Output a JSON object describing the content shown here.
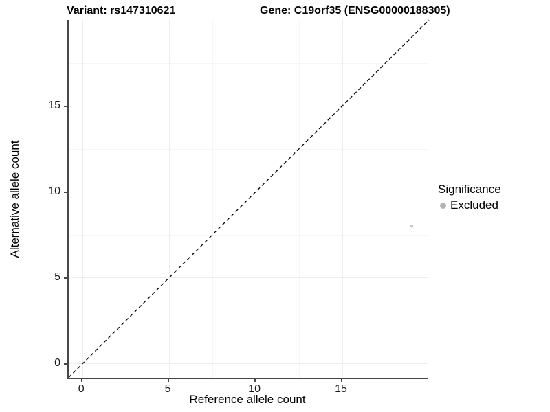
{
  "chart_data": {
    "type": "scatter",
    "title_left": "Variant: rs147310621",
    "title_right": "Gene: C19orf35 (ENSG00000188305)",
    "xlabel": "Reference allele count",
    "ylabel": "Alternative allele count",
    "xlim": [
      -0.8,
      20
    ],
    "ylim": [
      -0.9,
      20
    ],
    "x_major_ticks": [
      0,
      5,
      10,
      15
    ],
    "y_major_ticks": [
      0,
      5,
      10,
      15
    ],
    "x_minor_ticks": [
      2.5,
      7.5,
      12.5,
      17.5
    ],
    "y_minor_ticks": [
      2.5,
      7.5,
      12.5,
      17.5
    ],
    "grid": true,
    "points": [
      {
        "x": 19,
        "y": 8,
        "significance": "Excluded"
      }
    ],
    "identity_line": {
      "type": "dashed",
      "slope": 1,
      "intercept": 0
    },
    "legend": {
      "position": "right",
      "title": "Significance",
      "items": [
        {
          "label": "Excluded",
          "color": "#b3b3b3"
        }
      ]
    },
    "colors": {
      "point": "#c7c7c7",
      "legend_point": "#b3b3b3",
      "axis_line": "#474747",
      "grid_major": "#ededed",
      "grid_minor": "#f6f6f6",
      "dashed_line": "#000000",
      "text": "#000000"
    }
  }
}
